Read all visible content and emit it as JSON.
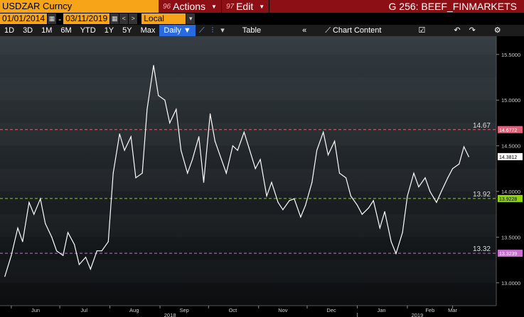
{
  "titlebar": {
    "security": "USDZAR Curncy",
    "actions_num": "96",
    "actions_label": "Actions",
    "edit_num": "97",
    "edit_label": "Edit",
    "page_title": "G 256: BEEF_FINMARKETS"
  },
  "range": {
    "start": "01/01/2014",
    "end": "03/11/2019",
    "currency": "Local CCY"
  },
  "toolbar": {
    "periods": [
      "1D",
      "3D",
      "1M",
      "6M",
      "YTD",
      "1Y",
      "5Y",
      "Max"
    ],
    "frequency": "Daily",
    "table_label": "Table",
    "chart_content_label": "Chart Content"
  },
  "colors": {
    "orange": "#f7a418",
    "red": "#8c0f16",
    "line": "#ffffff",
    "high": "#e0607a",
    "mid": "#8fd400",
    "low": "#c76ecf"
  },
  "chart_data": {
    "type": "line",
    "title": "",
    "xlabel": "",
    "ylabel": "",
    "ylim": [
      12.75,
      15.7
    ],
    "y_ticks": [
      "15.5000",
      "15.0000",
      "14.5000",
      "14.0000",
      "13.5000",
      "13.0000"
    ],
    "y_tick_values": [
      15.5,
      15.0,
      14.5,
      14.0,
      13.5,
      13.0
    ],
    "x_ticks": [
      "Jun",
      "Jul",
      "Aug",
      "Sep",
      "Oct",
      "Nov",
      "Dec",
      "Jan",
      "Feb",
      "Mar"
    ],
    "x_years": [
      "2018",
      "2019"
    ],
    "x": [
      "2018-05-28",
      "2018-06-01",
      "2018-06-05",
      "2018-06-08",
      "2018-06-12",
      "2018-06-15",
      "2018-06-19",
      "2018-06-22",
      "2018-06-26",
      "2018-06-29",
      "2018-07-03",
      "2018-07-06",
      "2018-07-10",
      "2018-07-13",
      "2018-07-17",
      "2018-07-20",
      "2018-07-24",
      "2018-07-27",
      "2018-07-31",
      "2018-08-03",
      "2018-08-07",
      "2018-08-10",
      "2018-08-14",
      "2018-08-17",
      "2018-08-21",
      "2018-08-24",
      "2018-08-28",
      "2018-08-31",
      "2018-09-04",
      "2018-09-07",
      "2018-09-11",
      "2018-09-14",
      "2018-09-18",
      "2018-09-21",
      "2018-09-25",
      "2018-09-28",
      "2018-10-02",
      "2018-10-05",
      "2018-10-09",
      "2018-10-12",
      "2018-10-16",
      "2018-10-19",
      "2018-10-23",
      "2018-10-26",
      "2018-10-30",
      "2018-11-02",
      "2018-11-06",
      "2018-11-09",
      "2018-11-13",
      "2018-11-16",
      "2018-11-20",
      "2018-11-23",
      "2018-11-27",
      "2018-11-30",
      "2018-12-04",
      "2018-12-07",
      "2018-12-11",
      "2018-12-14",
      "2018-12-18",
      "2018-12-21",
      "2018-12-25",
      "2018-12-28",
      "2019-01-01",
      "2019-01-04",
      "2019-01-08",
      "2019-01-11",
      "2019-01-15",
      "2019-01-18",
      "2019-01-22",
      "2019-01-25",
      "2019-01-29",
      "2019-02-01",
      "2019-02-05",
      "2019-02-08",
      "2019-02-12",
      "2019-02-15",
      "2019-02-19",
      "2019-02-22",
      "2019-02-26",
      "2019-03-01",
      "2019-03-05",
      "2019-03-08",
      "2019-03-11"
    ],
    "series": [
      {
        "values": [
          13.07,
          13.3,
          13.6,
          13.45,
          13.88,
          13.75,
          13.92,
          13.65,
          13.5,
          13.35,
          13.3,
          13.55,
          13.42,
          13.2,
          13.28,
          13.15,
          13.35,
          13.35,
          13.45,
          14.2,
          14.63,
          14.45,
          14.6,
          14.15,
          14.2,
          14.9,
          15.38,
          15.05,
          15.0,
          14.75,
          14.9,
          14.45,
          14.2,
          14.35,
          14.6,
          14.1,
          14.85,
          14.55,
          14.35,
          14.2,
          14.5,
          14.45,
          14.65,
          14.48,
          14.25,
          14.35,
          13.95,
          14.1,
          13.88,
          13.8,
          13.9,
          13.92,
          13.72,
          13.85,
          14.1,
          14.45,
          14.65,
          14.4,
          14.55,
          14.2,
          14.15,
          13.95,
          13.85,
          13.75,
          13.82,
          13.9,
          13.6,
          13.78,
          13.45,
          13.32,
          13.55,
          13.95,
          14.2,
          14.05,
          14.15,
          14.0,
          13.88,
          14.0,
          14.15,
          14.25,
          14.3,
          14.49,
          14.38
        ]
      }
    ],
    "annotations": [
      {
        "label": "14.67",
        "badge": "14.6772",
        "value": 14.6772,
        "color": "high"
      },
      {
        "label": "13.92",
        "badge": "13.9228",
        "value": 13.9228,
        "color": "mid"
      },
      {
        "label": "13.32",
        "badge": "13.3239",
        "value": 13.3239,
        "color": "low"
      }
    ],
    "last": {
      "badge": "14.3812",
      "value": 14.3812
    },
    "grid": false,
    "legend": "none"
  }
}
